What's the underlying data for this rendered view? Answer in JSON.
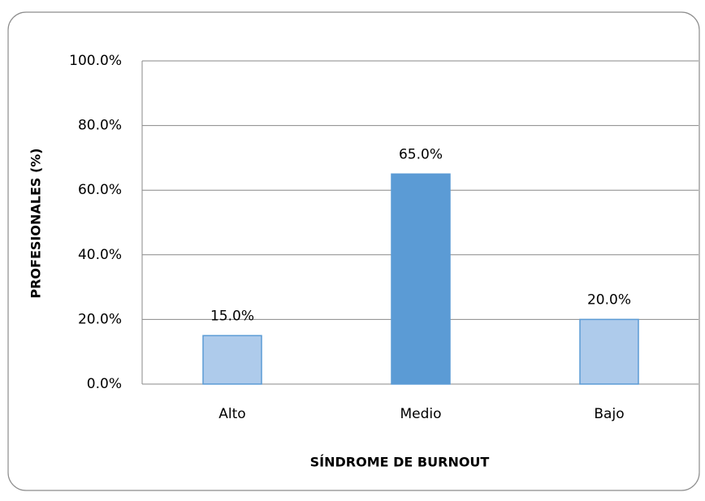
{
  "chart_data": {
    "type": "bar",
    "categories": [
      "Alto",
      "Medio",
      "Bajo"
    ],
    "values": [
      15,
      65,
      20
    ],
    "value_labels": [
      "15.0%",
      "65.0%",
      "20.0%"
    ],
    "colors": [
      "#aecbeb",
      "#5b9bd5",
      "#aecbeb"
    ],
    "x_label": "SÍNDROME  DE BURNOUT",
    "y_label": "PROFESIONALES (%)",
    "ylim": [
      0,
      100
    ],
    "yticks": [
      {
        "value": 0,
        "label": "0.0%"
      },
      {
        "value": 20,
        "label": "20.0%"
      },
      {
        "value": 40,
        "label": "40.0%"
      },
      {
        "value": 60,
        "label": "60.0%"
      },
      {
        "value": 80,
        "label": "80.0%"
      },
      {
        "value": 100,
        "label": "100.0%"
      }
    ],
    "grid": true
  }
}
